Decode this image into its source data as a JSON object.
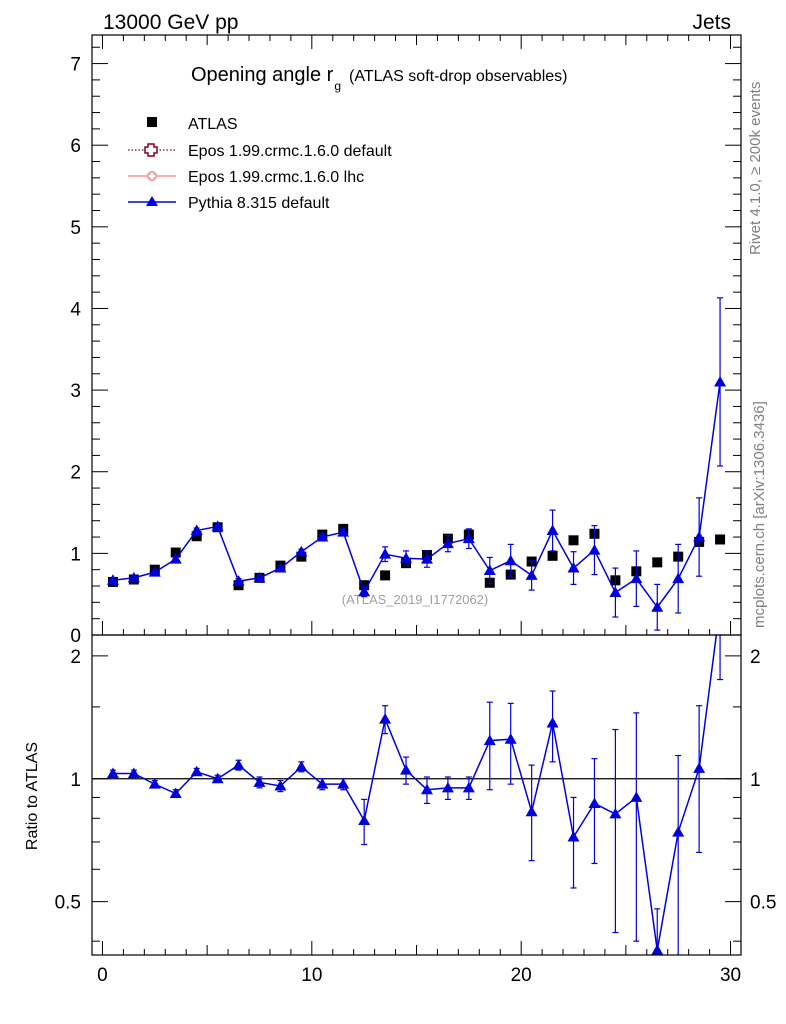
{
  "header": {
    "left": "13000 GeV pp",
    "right": "Jets"
  },
  "side_labels": {
    "rivet": "Rivet 4.1.0, ≥ 200k events",
    "mcplots": "mcplots.cern.ch [arXiv:1306.3436]"
  },
  "watermark": "(ATLAS_2019_I1772062)",
  "chart_data": [
    {
      "type": "scatter",
      "title": "Opening angle r",
      "title_sub": "g",
      "title_suffix": "(ATLAS soft-drop observables)",
      "xlim": [
        -0.5,
        30.5
      ],
      "ylim": [
        0,
        7.35
      ],
      "yticks": [
        0,
        1,
        2,
        3,
        4,
        5,
        6,
        7
      ],
      "ytick_labels": [
        "0",
        "1",
        "2",
        "3",
        "4",
        "5",
        "6",
        "7"
      ],
      "legend": [
        {
          "label": "ATLAS",
          "marker": "square",
          "color": "#000000"
        },
        {
          "label": "Epos 1.99.crmc.1.6.0 default",
          "marker": "open-cross",
          "color": "#800020",
          "line": "dotted"
        },
        {
          "label": "Epos 1.99.crmc.1.6.0 lhc",
          "marker": "open-cross-small",
          "color": "#f08080",
          "line": "solid"
        },
        {
          "label": "Pythia 8.315 default",
          "marker": "triangle",
          "color": "#0000dd",
          "line": "solid"
        }
      ],
      "x": [
        0.5,
        1.5,
        2.5,
        3.5,
        4.5,
        5.5,
        6.5,
        7.5,
        8.5,
        9.5,
        10.5,
        11.5,
        12.5,
        13.5,
        14.5,
        15.5,
        16.5,
        17.5,
        18.5,
        19.5,
        20.5,
        21.5,
        22.5,
        23.5,
        24.5,
        25.5,
        26.5,
        27.5,
        28.5,
        29.5
      ],
      "series": [
        {
          "name": "ATLAS",
          "values": [
            0.65,
            0.68,
            0.8,
            1.01,
            1.21,
            1.32,
            0.61,
            0.7,
            0.85,
            0.96,
            1.23,
            1.3,
            0.61,
            0.73,
            0.88,
            0.98,
            1.18,
            1.23,
            0.64,
            0.74,
            0.9,
            0.97,
            1.16,
            1.24,
            0.67,
            0.78,
            0.89,
            0.96,
            1.14,
            1.17
          ]
        },
        {
          "name": "Pythia 8.315 default",
          "values": [
            0.67,
            0.7,
            0.77,
            0.93,
            1.28,
            1.33,
            0.66,
            0.7,
            0.82,
            1.02,
            1.2,
            1.26,
            0.53,
            0.99,
            0.94,
            0.93,
            1.12,
            1.18,
            0.79,
            0.91,
            0.73,
            1.28,
            0.82,
            1.04,
            0.52,
            0.69,
            0.34,
            0.69,
            1.2,
            3.1
          ],
          "errors": [
            0.02,
            0.02,
            0.02,
            0.03,
            0.03,
            0.03,
            0.03,
            0.03,
            0.03,
            0.03,
            0.03,
            0.04,
            0.06,
            0.09,
            0.09,
            0.1,
            0.1,
            0.12,
            0.16,
            0.2,
            0.18,
            0.25,
            0.2,
            0.3,
            0.3,
            0.34,
            0.28,
            0.42,
            0.48,
            1.03
          ]
        }
      ]
    },
    {
      "type": "line",
      "ylabel": "Ratio to ATLAS",
      "xlim": [
        -0.5,
        30.5
      ],
      "ylim": [
        0.37,
        2.25
      ],
      "yscale": "log",
      "reference": 1,
      "xticks": [
        0,
        10,
        20,
        30
      ],
      "xtick_labels": [
        "0",
        "10",
        "20",
        "30"
      ],
      "yticks": [
        0.5,
        1,
        2
      ],
      "ytick_labels": [
        "0.5",
        "1",
        "2"
      ],
      "series": [
        {
          "name": "Pythia 8.315 default",
          "values": [
            1.03,
            1.03,
            0.97,
            0.92,
            1.04,
            1.0,
            1.08,
            0.98,
            0.96,
            1.07,
            0.97,
            0.97,
            0.79,
            1.4,
            1.05,
            0.94,
            0.95,
            0.95,
            1.24,
            1.25,
            0.83,
            1.37,
            0.72,
            0.87,
            0.82,
            0.9,
            0.38,
            0.74,
            1.06,
            2.65
          ],
          "err_low": [
            0.02,
            0.02,
            0.02,
            0.02,
            0.02,
            0.02,
            0.03,
            0.03,
            0.03,
            0.03,
            0.03,
            0.03,
            0.1,
            0.11,
            0.08,
            0.07,
            0.06,
            0.06,
            0.3,
            0.28,
            0.2,
            0.27,
            0.18,
            0.25,
            0.4,
            0.5,
            0.1,
            0.4,
            0.4,
            0.9
          ],
          "err_high": [
            0.02,
            0.02,
            0.02,
            0.02,
            0.02,
            0.02,
            0.03,
            0.03,
            0.03,
            0.03,
            0.03,
            0.03,
            0.1,
            0.11,
            0.08,
            0.07,
            0.06,
            0.06,
            0.3,
            0.28,
            0.25,
            0.27,
            0.18,
            0.25,
            0.5,
            0.55,
            0.1,
            0.4,
            0.45,
            0.9
          ]
        }
      ]
    }
  ]
}
